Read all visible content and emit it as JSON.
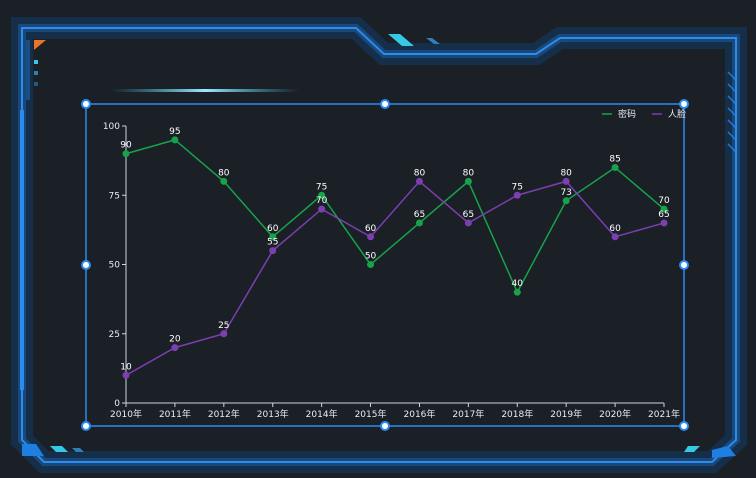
{
  "colors": {
    "background": "#1b1f26",
    "frame": "#1e7fe0",
    "frame_glow": "#0f3d6e",
    "accent_cyan": "#36c9e6",
    "accent_orange": "#e8762a",
    "axis": "#cfd6df"
  },
  "chart_data": {
    "type": "line",
    "categories": [
      "2010年",
      "2011年",
      "2012年",
      "2013年",
      "2014年",
      "2015年",
      "2016年",
      "2017年",
      "2018年",
      "2019年",
      "2020年",
      "2021年"
    ],
    "ylim": [
      0,
      100
    ],
    "yticks": [
      0,
      25,
      50,
      75,
      100
    ],
    "legend_position": "top-right",
    "grid": false,
    "series": [
      {
        "name": "密码",
        "color": "#16a34a",
        "values": [
          90,
          95,
          80,
          60,
          75,
          50,
          65,
          80,
          40,
          73,
          85,
          70
        ]
      },
      {
        "name": "人脸",
        "color": "#7b3fb0",
        "values": [
          10,
          20,
          25,
          55,
          70,
          60,
          80,
          65,
          75,
          80,
          60,
          65
        ]
      }
    ]
  }
}
